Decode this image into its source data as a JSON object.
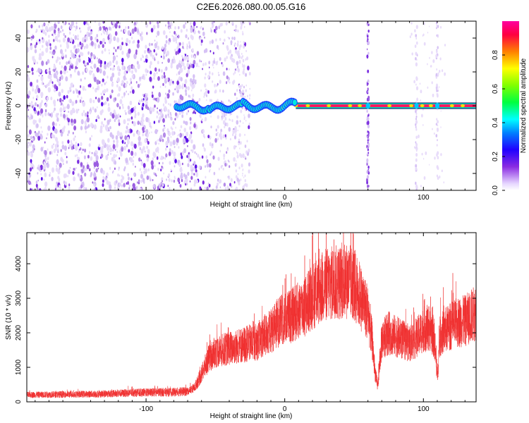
{
  "title": "C2E6.2026.080.00.05.G16",
  "colors": {
    "snr_line": "#f03030",
    "axis": "#000000",
    "background": "#ffffff"
  },
  "chart_data": [
    {
      "type": "heatmap",
      "xlabel": "Height of straight line (km)",
      "ylabel": "Frequency (Hz)",
      "xlim": [
        -186,
        138
      ],
      "ylim": [
        -50,
        50
      ],
      "xticks": [
        -100,
        0,
        100
      ],
      "yticks": [
        -40,
        -20,
        0,
        20,
        40
      ],
      "colorbar": {
        "label": "Normalized spectral amplitude",
        "range": [
          0,
          1
        ],
        "ticks": [
          0.0,
          0.2,
          0.4,
          0.6,
          0.8
        ],
        "tick_labels": [
          "0.0",
          "0.2",
          "0.4",
          "0.6",
          "0.8"
        ]
      },
      "features": {
        "noise_region_km": [
          -186,
          -62
        ],
        "scattered_region_km": [
          -62,
          -25
        ],
        "signal_wander_km": [
          -78,
          8
        ],
        "carrier_line_km": [
          8,
          138
        ],
        "carrier_frequency_hz": 0,
        "vertical_streaks_km": [
          60,
          95,
          110
        ]
      }
    },
    {
      "type": "line",
      "xlabel": "Height of straight line (km)",
      "ylabel": "SNR (10 * v/v)",
      "xlim": [
        -186,
        138
      ],
      "ylim": [
        0,
        4900
      ],
      "xticks": [
        -100,
        0,
        100
      ],
      "yticks": [
        0,
        1000,
        2000,
        3000,
        4000
      ],
      "series": [
        {
          "name": "SNR",
          "x": [
            -186,
            -170,
            -150,
            -130,
            -110,
            -90,
            -80,
            -70,
            -65,
            -60,
            -55,
            -50,
            -45,
            -40,
            -35,
            -30,
            -25,
            -20,
            -15,
            -10,
            -5,
            0,
            5,
            10,
            15,
            20,
            25,
            30,
            35,
            40,
            45,
            50,
            55,
            60,
            63,
            65,
            67,
            70,
            75,
            80,
            85,
            90,
            95,
            100,
            105,
            108,
            110,
            112,
            115,
            120,
            125,
            130,
            135,
            138
          ],
          "y": [
            200,
            210,
            220,
            230,
            260,
            280,
            280,
            300,
            420,
            800,
            1250,
            1450,
            1500,
            1550,
            1600,
            1650,
            1700,
            1750,
            1900,
            2050,
            2300,
            2400,
            2500,
            2650,
            2800,
            3050,
            3250,
            3400,
            3450,
            3450,
            3500,
            3400,
            3000,
            2600,
            1800,
            900,
            450,
            1800,
            2000,
            1900,
            1800,
            1700,
            1850,
            2100,
            2150,
            1800,
            700,
            1900,
            2050,
            2200,
            2300,
            2350,
            2500,
            2600
          ]
        }
      ]
    }
  ]
}
